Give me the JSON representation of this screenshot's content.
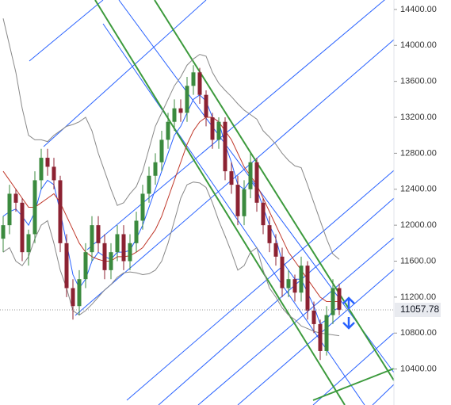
{
  "chart_data": {
    "type": "candlestick",
    "ylim": [
      10000,
      14505
    ],
    "yticks": [
      {
        "value": 10400,
        "label": "10400.00"
      },
      {
        "value": 10800,
        "label": "10800.00"
      },
      {
        "value": 11200,
        "label": "11200.00"
      },
      {
        "value": 11600,
        "label": "11600.00"
      },
      {
        "value": 12000,
        "label": "12000.00"
      },
      {
        "value": 12400,
        "label": "12400.00"
      },
      {
        "value": 12800,
        "label": "12800.00"
      },
      {
        "value": 13200,
        "label": "13200.00"
      },
      {
        "value": 13600,
        "label": "13600.00"
      },
      {
        "value": 14000,
        "label": "14000.00"
      },
      {
        "value": 14400,
        "label": "14400.00"
      }
    ],
    "last_price": 11057.78,
    "up_color": "#3b8a3e",
    "down_color": "#8c2232",
    "open": [
      11850,
      12000,
      12350,
      12250,
      11700,
      11900,
      12500,
      12750,
      12650,
      12500,
      11800,
      11300,
      11100,
      11400,
      11700,
      12000,
      11800,
      11500,
      11700,
      11900,
      11600,
      11800,
      12050,
      12350,
      12550,
      12700,
      12950,
      13150,
      13300,
      13250,
      13550,
      13700,
      13450,
      13200,
      12950,
      13150,
      12600,
      12450,
      12100,
      12400,
      12700,
      12250,
      12000,
      11800,
      11650,
      11300,
      11400,
      11250,
      11550,
      11050,
      10900,
      10600,
      11000,
      11300
    ],
    "high": [
      12100,
      12450,
      12400,
      12300,
      11950,
      12600,
      12850,
      12850,
      12750,
      12550,
      11900,
      11400,
      11500,
      11800,
      12100,
      12100,
      11900,
      11800,
      12000,
      12000,
      11900,
      12150,
      12450,
      12650,
      12800,
      13050,
      13250,
      13400,
      13400,
      13650,
      13780,
      13750,
      13500,
      13250,
      13200,
      13200,
      12700,
      12550,
      12500,
      12800,
      12750,
      12300,
      12100,
      11900,
      11750,
      11500,
      11450,
      11650,
      11600,
      11150,
      10950,
      11100,
      11400,
      11350
    ],
    "low": [
      11700,
      11900,
      12150,
      11600,
      11550,
      11800,
      12400,
      12550,
      12400,
      11700,
      11200,
      10950,
      11000,
      11300,
      11600,
      11700,
      11400,
      11400,
      11600,
      11500,
      11500,
      11700,
      11950,
      12250,
      12450,
      12600,
      12850,
      13050,
      13150,
      13150,
      13450,
      13350,
      13100,
      12850,
      12850,
      12500,
      12350,
      12000,
      12000,
      12300,
      12150,
      11900,
      11700,
      11550,
      11200,
      11200,
      11150,
      11150,
      10950,
      10800,
      10500,
      10550,
      10900,
      11000
    ],
    "close": [
      12000,
      12350,
      12250,
      11700,
      11900,
      12500,
      12750,
      12650,
      12500,
      11800,
      11300,
      11100,
      11400,
      11700,
      12000,
      11800,
      11500,
      11700,
      11900,
      11600,
      11800,
      12050,
      12350,
      12550,
      12700,
      12950,
      13150,
      13300,
      13250,
      13550,
      13700,
      13450,
      13200,
      12950,
      13150,
      12600,
      12450,
      12100,
      12400,
      12700,
      12250,
      12000,
      11800,
      11650,
      11300,
      11400,
      11250,
      11550,
      11050,
      10900,
      10600,
      11000,
      11300,
      11057.78
    ],
    "lines": [
      {
        "color": "#888888",
        "values": [
          14300,
          14000,
          13700,
          13300,
          13000,
          12950,
          12950,
          12930,
          13000,
          13050,
          13100,
          13120,
          13150,
          13200,
          13050,
          12800,
          12600,
          12400,
          12220,
          12250,
          12350,
          12430,
          12600,
          12850,
          13100,
          13250,
          13400,
          13550,
          13650,
          13780,
          13850,
          13900,
          13880,
          13700,
          13580,
          13500,
          13430,
          13350,
          13280,
          13230,
          13180,
          13050,
          12980,
          12900,
          12800,
          12720,
          12660,
          12640,
          12450,
          12250,
          12050,
          11850,
          11680,
          11620
        ]
      },
      {
        "color": "#888888",
        "values": [
          11700,
          11750,
          11600,
          11550,
          11650,
          11850,
          12000,
          12050,
          11800,
          11500,
          11300,
          11050,
          11000,
          11050,
          11120,
          11200,
          11280,
          11340,
          11420,
          11470,
          11480,
          11470,
          11450,
          11460,
          11500,
          11600,
          11800,
          12050,
          12300,
          12450,
          12480,
          12470,
          12420,
          12250,
          12050,
          11880,
          11700,
          11500,
          11550,
          11700,
          11750,
          11500,
          11300,
          11200,
          11080,
          11000,
          10950,
          10880,
          10850,
          10820,
          10800,
          10790,
          10780,
          10770
        ]
      },
      {
        "color": "#2962ff",
        "values": [
          12100,
          12150,
          12180,
          12100,
          12000,
          12150,
          12400,
          12500,
          12450,
          12150,
          11800,
          11450,
          11300,
          11400,
          11600,
          11700,
          11650,
          11620,
          11700,
          11700,
          11720,
          11850,
          12000,
          12200,
          12400,
          12600,
          12800,
          13000,
          13100,
          13250,
          13400,
          13450,
          13380,
          13200,
          13150,
          12900,
          12700,
          12450,
          12400,
          12500,
          12400,
          12200,
          12000,
          11850,
          11600,
          11500,
          11400,
          11400,
          11250,
          11100,
          10900,
          10950,
          11050,
          11080
        ]
      },
      {
        "color": "#c0392b",
        "values": [
          12600,
          12500,
          12400,
          12300,
          12200,
          12200,
          12250,
          12300,
          12350,
          12250,
          12100,
          11950,
          11800,
          11700,
          11650,
          11620,
          11600,
          11600,
          11650,
          11650,
          11660,
          11700,
          11750,
          11850,
          11950,
          12100,
          12300,
          12500,
          12700,
          12900,
          13050,
          13150,
          13200,
          13200,
          13150,
          13050,
          12950,
          12800,
          12650,
          12550,
          12450,
          12300,
          12150,
          12000,
          11850,
          11700,
          11600,
          11500,
          11400,
          11300,
          11200,
          11150,
          11150,
          11150
        ]
      }
    ]
  }
}
